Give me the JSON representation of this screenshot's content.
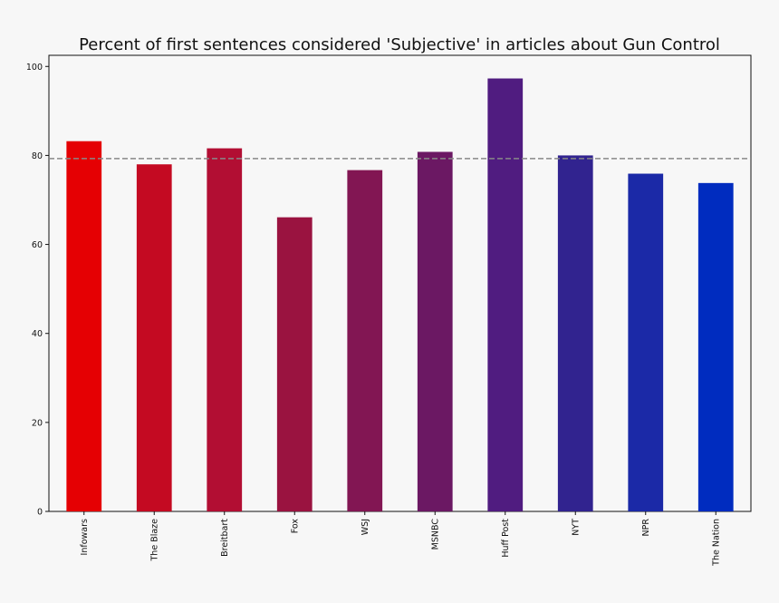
{
  "chart_data": {
    "type": "bar",
    "title": "Percent of first sentences considered 'Subjective' in articles about Gun Control",
    "xlabel": "",
    "ylabel": "",
    "categories": [
      "Infowars",
      "The Blaze",
      "Breitbart",
      "Fox",
      "WSJ",
      "MSNBC",
      "Huff Post",
      "NYT",
      "NPR",
      "The Nation"
    ],
    "values": [
      83.2,
      78.0,
      81.6,
      66.1,
      76.7,
      80.8,
      97.3,
      80.0,
      75.9,
      73.8
    ],
    "bar_colors": [
      "#e50003",
      "#c40a22",
      "#b20e33",
      "#9a1340",
      "#821653",
      "#6b1863",
      "#501c80",
      "#31238f",
      "#1b29a7",
      "#002cbf"
    ],
    "reference_line": {
      "value": 79.3,
      "style": "dashed",
      "color": "#888888"
    },
    "ylim": [
      0,
      102.5
    ],
    "yticks": [
      0,
      20,
      40,
      60,
      80,
      100
    ],
    "grid": false,
    "legend": "none"
  },
  "colors": {
    "background": "#f7f7f7",
    "axes_border": "#111111",
    "text": "#111111"
  }
}
